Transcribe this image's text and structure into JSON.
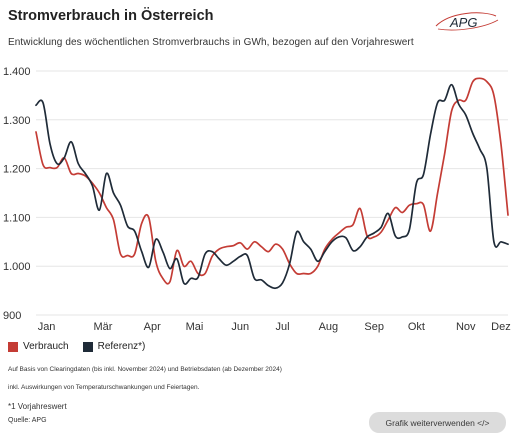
{
  "header": {
    "title": "Stromverbrauch in Österreich",
    "subtitle": "Entwicklung des wöchentlichen Stromverbrauchs in GWh, bezogen auf den Vorjahreswert",
    "logo_text": "APG"
  },
  "legend": {
    "verbrauch": "Verbrauch",
    "referenz": "Referenz*)"
  },
  "notes": {
    "line1": "Auf Basis von Clearingdaten (bis inkl. November 2024) und Betriebsdaten (ab Dezember 2024)",
    "line2": "inkl. Auswirkungen von Temperaturschwankungen und Feiertagen.",
    "footnote": "*1 Vorjahreswert",
    "source": "Quelle: APG"
  },
  "button": {
    "label": "Grafik weiterverwenden </>"
  },
  "colors": {
    "verbrauch": "#c43c35",
    "referenz": "#1f2b38",
    "grid": "#e6e6e6"
  },
  "chart_data": {
    "type": "line",
    "title": "Stromverbrauch in Österreich",
    "ylim": [
      900,
      1400
    ],
    "yticks": [
      "1.400",
      "1.300",
      "1.200",
      "1.100",
      "1.000",
      "900"
    ],
    "ytick_values": [
      1400,
      1300,
      1200,
      1100,
      1000,
      900
    ],
    "months": [
      "Jan",
      "Mär",
      "Apr",
      "Mai",
      "Jun",
      "Jul",
      "Aug",
      "Sep",
      "Okt",
      "Nov",
      "Dez"
    ],
    "month_positions": [
      1.5,
      9.5,
      16.5,
      22.5,
      29,
      35,
      41.5,
      48,
      54,
      61,
      66
    ],
    "x_range": [
      0,
      67
    ],
    "grid": true,
    "series": [
      {
        "name": "Verbrauch",
        "color": "#c43c35",
        "x": [
          0,
          1,
          2,
          3,
          4,
          5,
          6,
          7,
          8,
          9,
          10,
          11,
          12,
          13,
          14,
          15,
          16,
          17,
          18,
          19,
          20,
          21,
          22,
          23,
          24,
          25,
          26,
          27,
          28,
          29,
          30,
          31,
          32,
          33,
          34,
          35,
          36,
          37,
          38,
          39,
          40,
          41,
          42,
          43,
          44,
          45,
          46,
          47,
          48,
          49,
          50,
          51,
          52,
          53,
          54,
          55,
          56,
          57,
          58,
          59,
          60,
          61,
          62,
          63,
          64,
          65,
          66,
          67
        ],
        "values": [
          1275,
          1208,
          1202,
          1202,
          1222,
          1190,
          1190,
          1185,
          1170,
          1150,
          1120,
          1095,
          1025,
          1022,
          1025,
          1088,
          1100,
          1010,
          975,
          968,
          1032,
          1000,
          1010,
          985,
          985,
          1020,
          1035,
          1040,
          1042,
          1048,
          1035,
          1050,
          1040,
          1030,
          1045,
          1035,
          1005,
          985,
          985,
          985,
          1000,
          1035,
          1055,
          1068,
          1080,
          1085,
          1118,
          1062,
          1060,
          1070,
          1095,
          1120,
          1110,
          1125,
          1128,
          1126,
          1072,
          1150,
          1230,
          1318,
          1340,
          1340,
          1378,
          1385,
          1378,
          1350,
          1250,
          1105
        ]
      },
      {
        "name": "Referenz*)",
        "color": "#1f2b38",
        "x": [
          0,
          1,
          2,
          3,
          4,
          5,
          6,
          7,
          8,
          9,
          10,
          11,
          12,
          13,
          14,
          15,
          16,
          17,
          18,
          19,
          20,
          21,
          22,
          23,
          24,
          25,
          26,
          27,
          28,
          29,
          30,
          31,
          32,
          33,
          34,
          35,
          36,
          37,
          38,
          39,
          40,
          41,
          42,
          43,
          44,
          45,
          46,
          47,
          48,
          49,
          50,
          51,
          52,
          53,
          54,
          55,
          56,
          57,
          58,
          59,
          60,
          61,
          62,
          63,
          64,
          65,
          66,
          67
        ],
        "values": [
          1330,
          1335,
          1250,
          1210,
          1222,
          1255,
          1210,
          1190,
          1165,
          1115,
          1190,
          1150,
          1125,
          1082,
          1072,
          1030,
          998,
          1055,
          1030,
          995,
          1015,
          965,
          975,
          977,
          1025,
          1030,
          1015,
          1002,
          1010,
          1020,
          1022,
          975,
          972,
          960,
          955,
          966,
          1005,
          1070,
          1050,
          1035,
          1010,
          1030,
          1050,
          1060,
          1058,
          1032,
          1040,
          1060,
          1068,
          1080,
          1108,
          1062,
          1060,
          1075,
          1170,
          1188,
          1270,
          1335,
          1340,
          1372,
          1332,
          1310,
          1272,
          1240,
          1200,
          1050,
          1050,
          1045
        ]
      }
    ]
  }
}
